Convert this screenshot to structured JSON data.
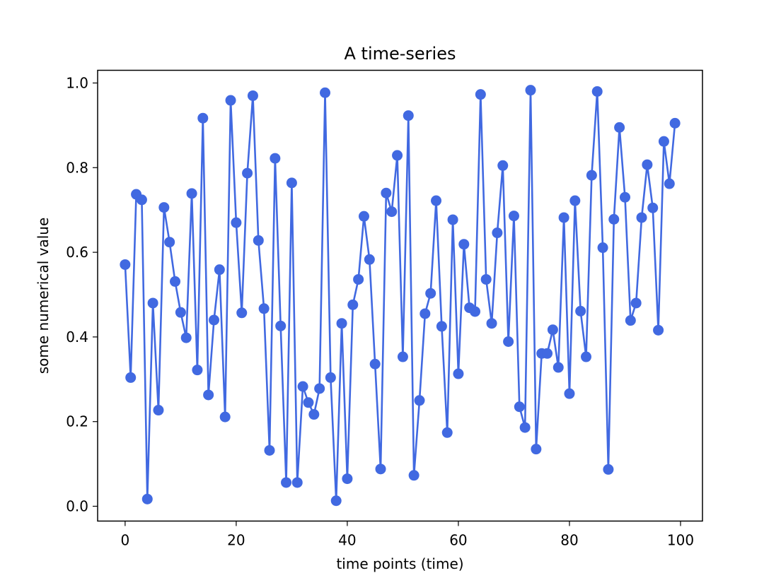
{
  "chart_data": {
    "type": "line",
    "title": "A time-series",
    "xlabel": "time points (time)",
    "ylabel": "some numerical value",
    "xlim": [
      -4.95,
      103.95
    ],
    "ylim": [
      -0.035,
      1.03
    ],
    "xticks": [
      0,
      20,
      40,
      60,
      80,
      100
    ],
    "yticks": [
      0.0,
      0.2,
      0.4,
      0.6,
      0.8,
      1.0
    ],
    "ytick_labels": [
      "0.0",
      "0.2",
      "0.4",
      "0.6",
      "0.8",
      "1.0"
    ],
    "grid": false,
    "color": "#4169e1",
    "marker": "circle",
    "series": [
      {
        "x": [
          0,
          1,
          2,
          3,
          4,
          5,
          6,
          7,
          8,
          9,
          10,
          11,
          12,
          13,
          14,
          15,
          16,
          17,
          18,
          19,
          20,
          21,
          22,
          23,
          24,
          25,
          26,
          27,
          28,
          29,
          30,
          31,
          32,
          33,
          34,
          35,
          36,
          37,
          38,
          39,
          40,
          41,
          42,
          43,
          44,
          45,
          46,
          47,
          48,
          49,
          50,
          51,
          52,
          53,
          54,
          55,
          56,
          57,
          58,
          59,
          60,
          61,
          62,
          63,
          64,
          65,
          66,
          67,
          68,
          69,
          70,
          71,
          72,
          73,
          74,
          75,
          76,
          77,
          78,
          79,
          80,
          81,
          82,
          83,
          84,
          85,
          86,
          87,
          88,
          89,
          90,
          91,
          92,
          93,
          94,
          95,
          96,
          97,
          98,
          99
        ],
        "values": [
          0.571,
          0.304,
          0.737,
          0.724,
          0.017,
          0.48,
          0.227,
          0.706,
          0.624,
          0.531,
          0.458,
          0.398,
          0.739,
          0.322,
          0.917,
          0.263,
          0.44,
          0.559,
          0.211,
          0.959,
          0.67,
          0.457,
          0.787,
          0.97,
          0.628,
          0.467,
          0.132,
          0.822,
          0.426,
          0.056,
          0.764,
          0.056,
          0.283,
          0.245,
          0.217,
          0.278,
          0.977,
          0.304,
          0.013,
          0.432,
          0.065,
          0.476,
          0.536,
          0.685,
          0.583,
          0.336,
          0.088,
          0.74,
          0.696,
          0.829,
          0.353,
          0.923,
          0.073,
          0.25,
          0.455,
          0.503,
          0.722,
          0.425,
          0.174,
          0.677,
          0.313,
          0.619,
          0.469,
          0.46,
          0.973,
          0.536,
          0.432,
          0.646,
          0.805,
          0.389,
          0.686,
          0.235,
          0.186,
          0.983,
          0.135,
          0.361,
          0.361,
          0.417,
          0.328,
          0.682,
          0.266,
          0.722,
          0.461,
          0.353,
          0.782,
          0.98,
          0.611,
          0.087,
          0.678,
          0.895,
          0.73,
          0.439,
          0.48,
          0.682,
          0.807,
          0.705,
          0.416,
          0.862,
          0.762,
          0.905
        ]
      }
    ]
  }
}
